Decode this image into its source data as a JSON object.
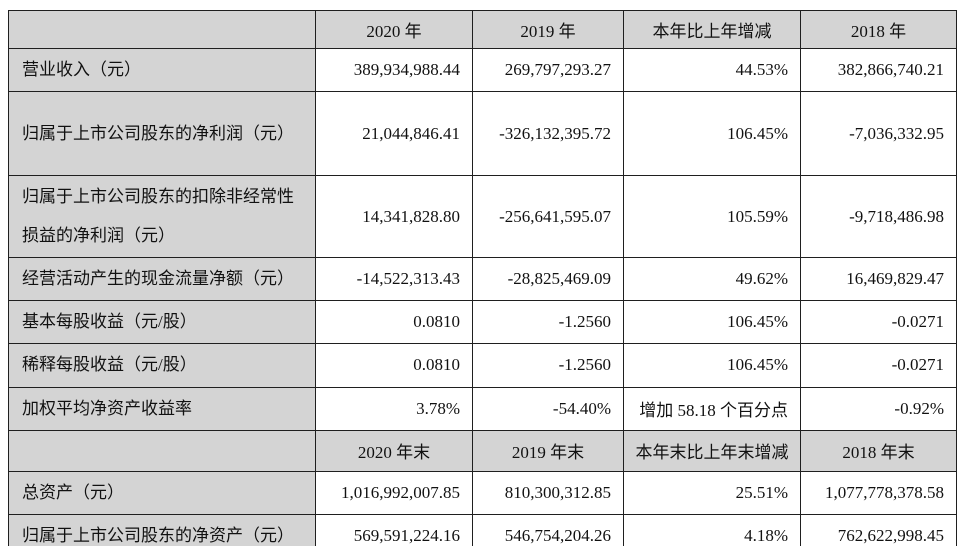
{
  "colors": {
    "header_fill": "#d4d4d4",
    "border": "#1f1f1f",
    "text": "#111111",
    "background": "#ffffff"
  },
  "table": {
    "section_current": {
      "headers": [
        "2020 年",
        "2019 年",
        "本年比上年增减",
        "2018 年"
      ],
      "rows": [
        {
          "label": "营业收入（元）",
          "v0": "389,934,988.44",
          "v1": "269,797,293.27",
          "v2": "44.53%",
          "v3": "382,866,740.21"
        },
        {
          "label": "归属于上市公司股东的净利润（元）",
          "v0": "21,044,846.41",
          "v1": "-326,132,395.72",
          "v2": "106.45%",
          "v3": "-7,036,332.95"
        },
        {
          "label": "归属于上市公司股东的扣除非经常性损益的净利润（元）",
          "v0": "14,341,828.80",
          "v1": "-256,641,595.07",
          "v2": "105.59%",
          "v3": "-9,718,486.98"
        },
        {
          "label": "经营活动产生的现金流量净额（元）",
          "v0": "-14,522,313.43",
          "v1": "-28,825,469.09",
          "v2": "49.62%",
          "v3": "16,469,829.47"
        },
        {
          "label": "基本每股收益（元/股）",
          "v0": "0.0810",
          "v1": "-1.2560",
          "v2": "106.45%",
          "v3": "-0.0271"
        },
        {
          "label": "稀释每股收益（元/股）",
          "v0": "0.0810",
          "v1": "-1.2560",
          "v2": "106.45%",
          "v3": "-0.0271"
        },
        {
          "label": "加权平均净资产收益率",
          "v0": "3.78%",
          "v1": "-54.40%",
          "v2": "增加 58.18 个百分点",
          "v3": "-0.92%"
        }
      ]
    },
    "section_yearend": {
      "headers": [
        "2020 年末",
        "2019 年末",
        "本年末比上年末增减",
        "2018 年末"
      ],
      "rows": [
        {
          "label": "总资产（元）",
          "v0": "1,016,992,007.85",
          "v1": "810,300,312.85",
          "v2": "25.51%",
          "v3": "1,077,778,378.58"
        },
        {
          "label": "归属于上市公司股东的净资产（元）",
          "v0": "569,591,224.16",
          "v1": "546,754,204.26",
          "v2": "4.18%",
          "v3": "762,622,998.45"
        }
      ]
    }
  }
}
